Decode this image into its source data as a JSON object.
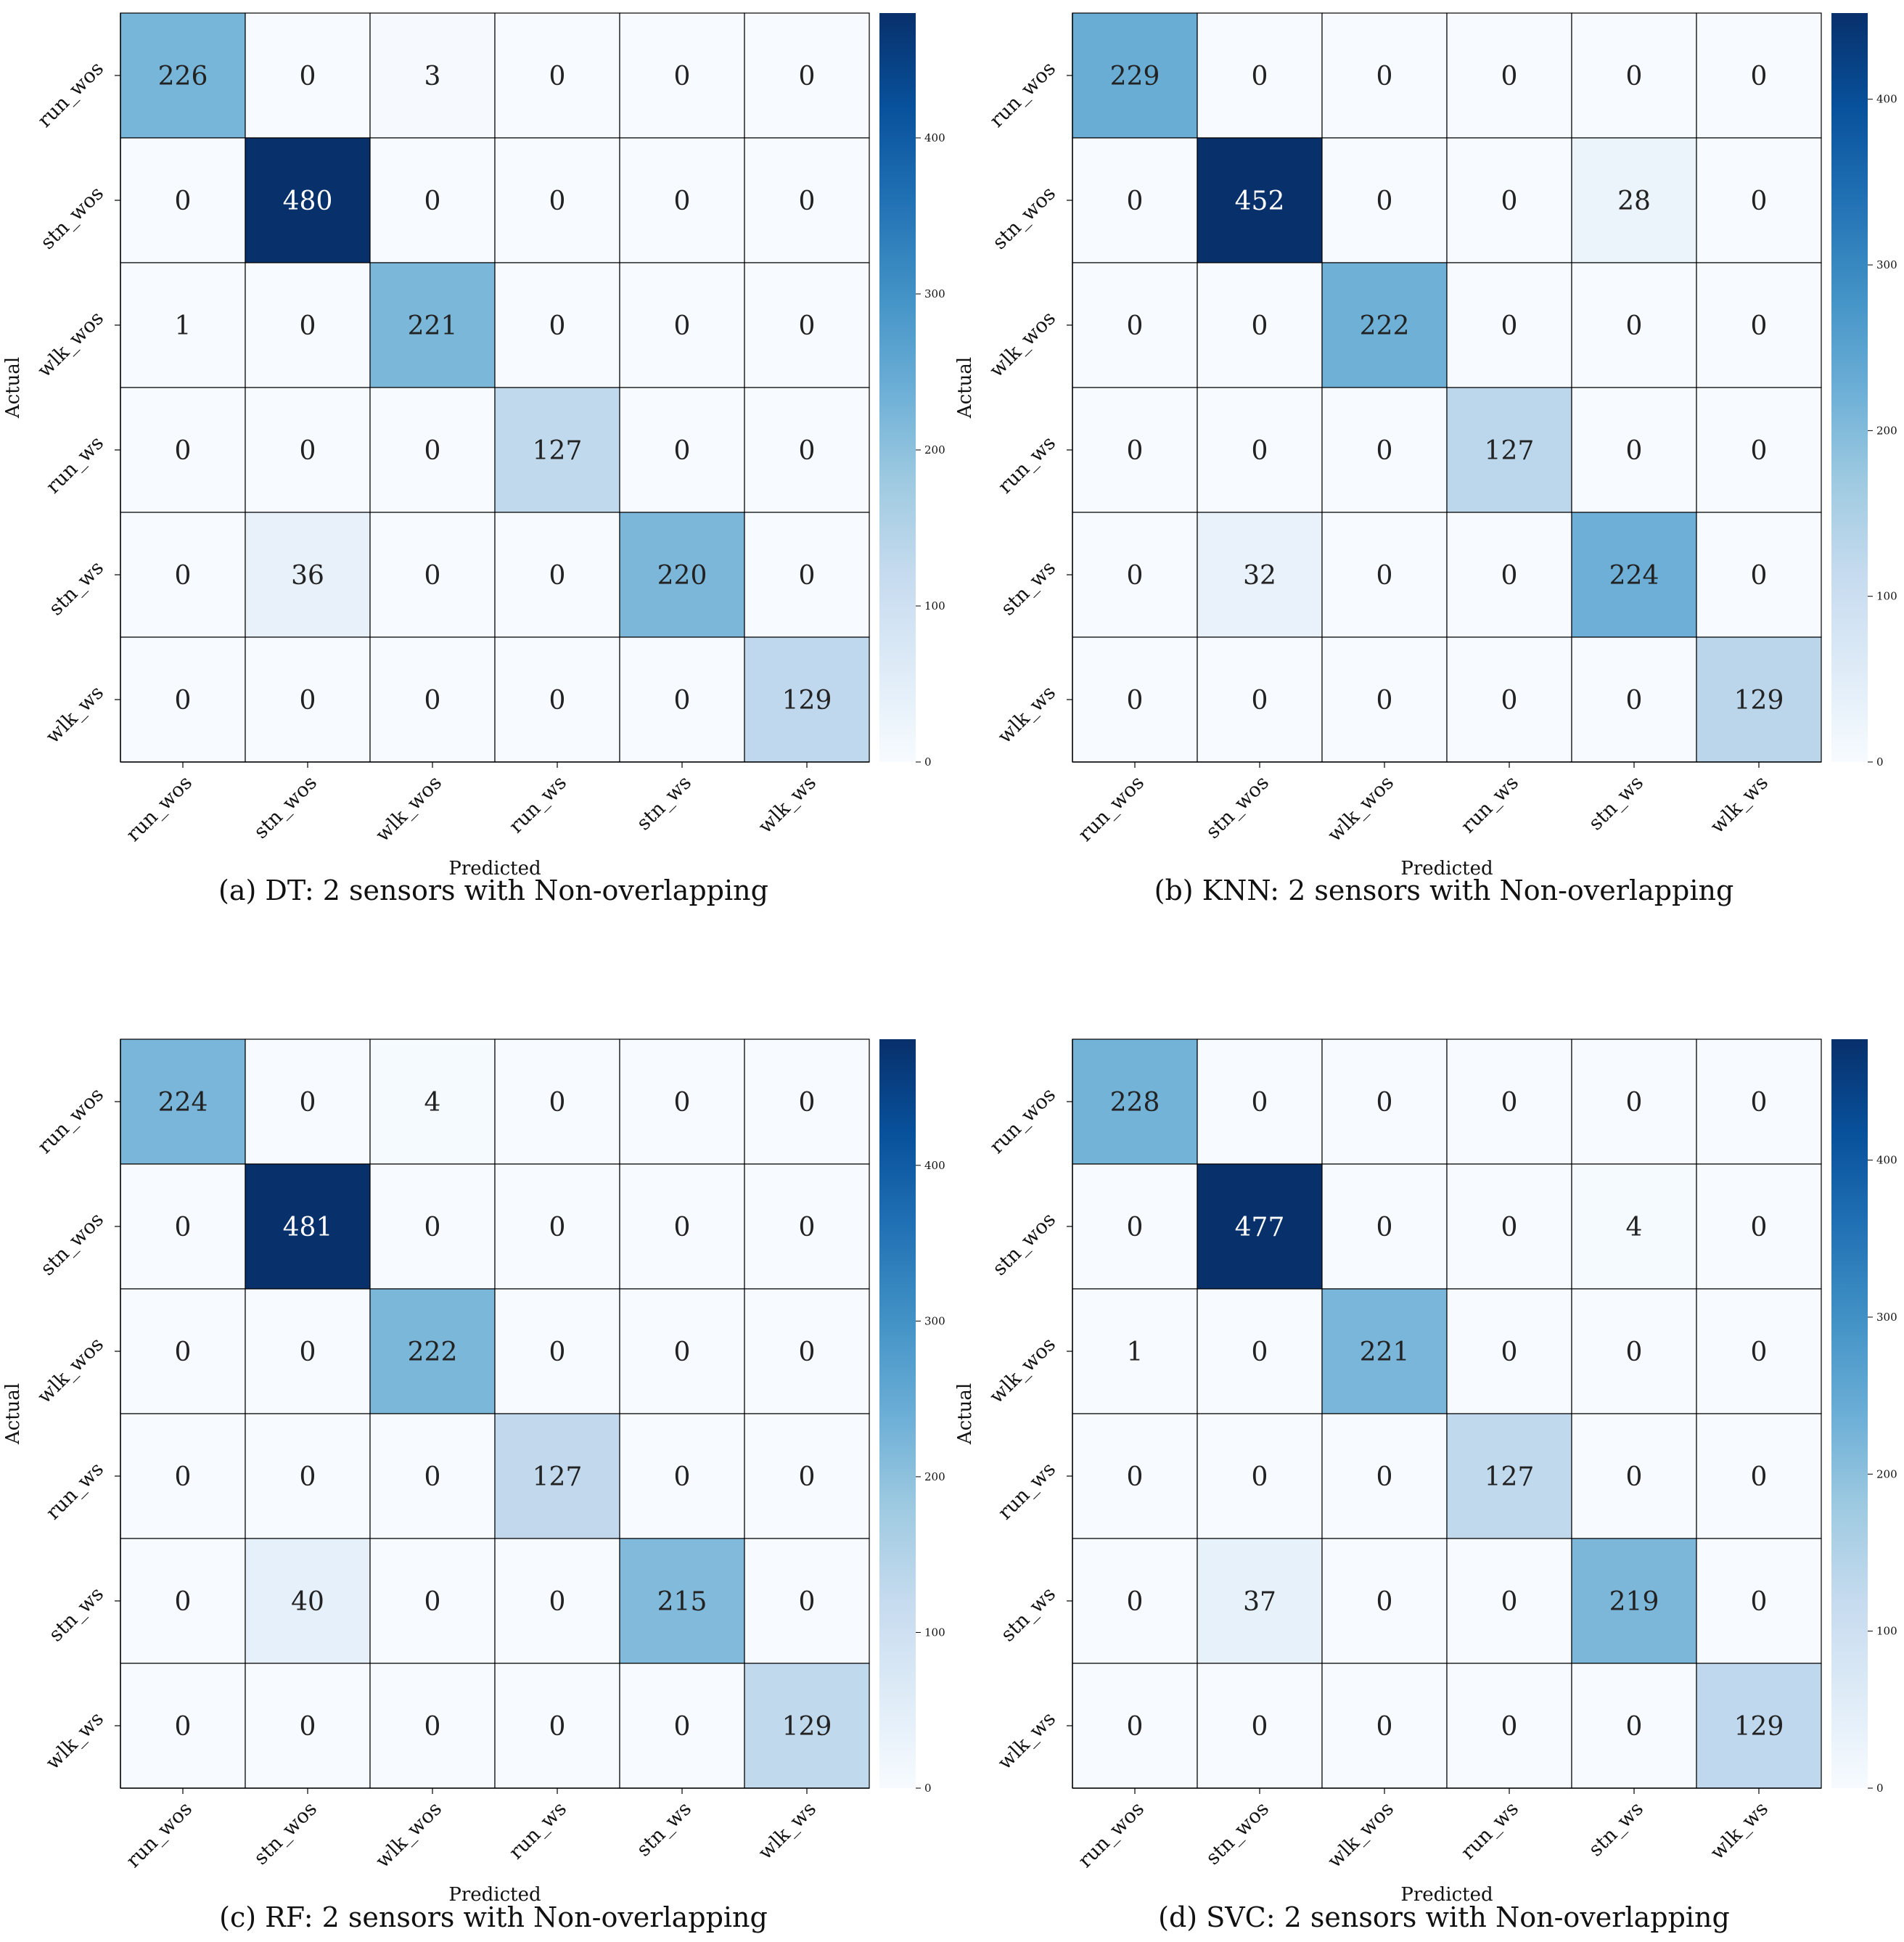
{
  "chart_data": [
    {
      "type": "heatmap",
      "caption": "(a) DT: 2 sensors with Non-overlapping",
      "xlabel": "Predicted",
      "ylabel": "Actual",
      "row_labels": [
        "run_wos",
        "stn_wos",
        "wlk_wos",
        "run_ws",
        "stn_ws",
        "wlk_ws"
      ],
      "col_labels": [
        "run_wos",
        "stn_wos",
        "wlk_wos",
        "run_ws",
        "stn_ws",
        "wlk_ws"
      ],
      "values": [
        [
          226,
          0,
          3,
          0,
          0,
          0
        ],
        [
          0,
          480,
          0,
          0,
          0,
          0
        ],
        [
          1,
          0,
          221,
          0,
          0,
          0
        ],
        [
          0,
          0,
          0,
          127,
          0,
          0
        ],
        [
          0,
          36,
          0,
          0,
          220,
          0
        ],
        [
          0,
          0,
          0,
          0,
          0,
          129
        ]
      ],
      "colorbar": {
        "min": 0,
        "max": 480,
        "ticks": [
          "0",
          "100",
          "200",
          "300",
          "400"
        ]
      },
      "colormap": "Blues"
    },
    {
      "type": "heatmap",
      "caption": "(b) KNN: 2 sensors with Non-overlapping",
      "xlabel": "Predicted",
      "ylabel": "Actual",
      "row_labels": [
        "run_wos",
        "stn_wos",
        "wlk_wos",
        "run_ws",
        "stn_ws",
        "wlk_ws"
      ],
      "col_labels": [
        "run_wos",
        "stn_wos",
        "wlk_wos",
        "run_ws",
        "stn_ws",
        "wlk_ws"
      ],
      "values": [
        [
          229,
          0,
          0,
          0,
          0,
          0
        ],
        [
          0,
          452,
          0,
          0,
          28,
          0
        ],
        [
          0,
          0,
          222,
          0,
          0,
          0
        ],
        [
          0,
          0,
          0,
          127,
          0,
          0
        ],
        [
          0,
          32,
          0,
          0,
          224,
          0
        ],
        [
          0,
          0,
          0,
          0,
          0,
          129
        ]
      ],
      "colorbar": {
        "min": 0,
        "max": 452,
        "ticks": [
          "0",
          "100",
          "200",
          "300",
          "400"
        ]
      },
      "colormap": "Blues"
    },
    {
      "type": "heatmap",
      "caption": "(c) RF: 2 sensors with Non-overlapping",
      "xlabel": "Predicted",
      "ylabel": "Actual",
      "row_labels": [
        "run_wos",
        "stn_wos",
        "wlk_wos",
        "run_ws",
        "stn_ws",
        "wlk_ws"
      ],
      "col_labels": [
        "run_wos",
        "stn_wos",
        "wlk_wos",
        "run_ws",
        "stn_ws",
        "wlk_ws"
      ],
      "values": [
        [
          224,
          0,
          4,
          0,
          0,
          0
        ],
        [
          0,
          481,
          0,
          0,
          0,
          0
        ],
        [
          0,
          0,
          222,
          0,
          0,
          0
        ],
        [
          0,
          0,
          0,
          127,
          0,
          0
        ],
        [
          0,
          40,
          0,
          0,
          215,
          0
        ],
        [
          0,
          0,
          0,
          0,
          0,
          129
        ]
      ],
      "colorbar": {
        "min": 0,
        "max": 481,
        "ticks": [
          "0",
          "100",
          "200",
          "300",
          "400"
        ]
      },
      "colormap": "Blues"
    },
    {
      "type": "heatmap",
      "caption": "(d) SVC: 2 sensors with Non-overlapping",
      "xlabel": "Predicted",
      "ylabel": "Actual",
      "row_labels": [
        "run_wos",
        "stn_wos",
        "wlk_wos",
        "run_ws",
        "stn_ws",
        "wlk_ws"
      ],
      "col_labels": [
        "run_wos",
        "stn_wos",
        "wlk_wos",
        "run_ws",
        "stn_ws",
        "wlk_ws"
      ],
      "values": [
        [
          228,
          0,
          0,
          0,
          0,
          0
        ],
        [
          0,
          477,
          0,
          0,
          4,
          0
        ],
        [
          1,
          0,
          221,
          0,
          0,
          0
        ],
        [
          0,
          0,
          0,
          127,
          0,
          0
        ],
        [
          0,
          37,
          0,
          0,
          219,
          0
        ],
        [
          0,
          0,
          0,
          0,
          0,
          129
        ]
      ],
      "colorbar": {
        "min": 0,
        "max": 477,
        "ticks": [
          "0",
          "100",
          "200",
          "300",
          "400"
        ]
      },
      "colormap": "Blues"
    }
  ]
}
